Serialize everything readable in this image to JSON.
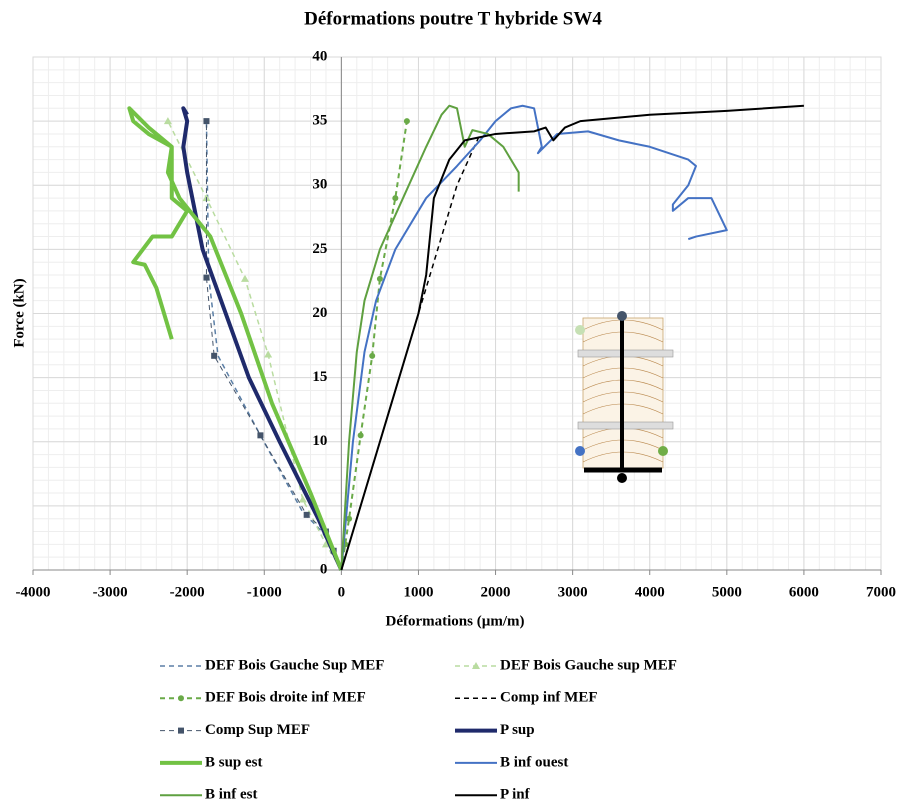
{
  "chart_data": {
    "type": "line",
    "title": "Déformations poutre T hybride SW4",
    "x_label": "Déformations (µm/m)",
    "y_label": "Force (kN)",
    "xlim": [
      -4000,
      7000
    ],
    "xticks": [
      -4000,
      -3000,
      -2000,
      -1000,
      0,
      1000,
      2000,
      3000,
      4000,
      5000,
      6000,
      7000
    ],
    "ylim": [
      0,
      40
    ],
    "yticks": [
      0,
      10,
      15,
      20,
      25,
      30,
      35,
      40
    ],
    "grid": true,
    "minor_grid": true,
    "series": [
      {
        "name": "DEF Bois Gauche Sup MEF",
        "color": "#5b7fa6",
        "dash": true,
        "width": 1.5,
        "marker": "none",
        "x": [
          0,
          -120,
          -250,
          -500,
          -1050,
          -1600,
          -1720,
          -1750
        ],
        "y": [
          0,
          1.5,
          3,
          4.5,
          10.5,
          16.7,
          22.8,
          35
        ]
      },
      {
        "name": "DEF Bois Gauche sup MEF",
        "color": "#b9dca0",
        "dash": true,
        "width": 1.5,
        "marker": "triangle",
        "x": [
          0,
          -200,
          -500,
          -950,
          -1250,
          -1750,
          -2250
        ],
        "y": [
          0,
          2,
          5.5,
          16.8,
          22.7,
          29,
          35
        ]
      },
      {
        "name": "DEF Bois droite inf MEF",
        "color": "#6aaa48",
        "dash": true,
        "width": 2,
        "marker": "circle",
        "x": [
          0,
          50,
          100,
          250,
          400,
          500,
          700,
          850
        ],
        "y": [
          0,
          2,
          4,
          10.5,
          16.7,
          22.7,
          29,
          35
        ]
      },
      {
        "name": "Comp inf MEF",
        "color": "#000000",
        "dash": true,
        "width": 1.5,
        "marker": "none",
        "x": [
          0,
          500,
          1000,
          1500,
          1800
        ],
        "y": [
          0,
          10,
          20,
          30,
          34
        ]
      },
      {
        "name": "Comp Sup MEF",
        "color": "#44546a",
        "dash": true,
        "width": 1,
        "marker": "square",
        "x": [
          0,
          -100,
          -200,
          -450,
          -1050,
          -1650,
          -1750,
          -1750
        ],
        "y": [
          0,
          1.5,
          3,
          4.3,
          10.5,
          16.7,
          22.8,
          35
        ]
      },
      {
        "name": "P sup",
        "color": "#1f2a6b",
        "dash": false,
        "width": 4,
        "marker": "none",
        "x": [
          0,
          -300,
          -800,
          -1200,
          -1500,
          -1800,
          -1900,
          -2000,
          -2050,
          -2000,
          -2050,
          -2000
        ],
        "y": [
          0,
          4,
          10,
          15,
          20,
          25,
          28,
          31,
          33,
          35,
          36,
          35.5
        ]
      },
      {
        "name": "B sup est",
        "color": "#72c244",
        "dash": false,
        "width": 4,
        "marker": "none",
        "x": [
          0,
          -400,
          -900,
          -1300,
          -1700,
          -2100,
          -2250,
          -2200,
          -2500,
          -2700,
          -2750,
          -2500,
          -2200,
          -2200,
          -2000,
          -2200,
          -2450,
          -2700,
          -2550,
          -2400,
          -2200
        ],
        "y": [
          0,
          6,
          13,
          20,
          26,
          29,
          31,
          33,
          34,
          35,
          36,
          34.5,
          33,
          29,
          28,
          26,
          26,
          24,
          23.8,
          22,
          18
        ]
      },
      {
        "name": "B inf ouest",
        "color": "#4472c4",
        "dash": false,
        "width": 2,
        "marker": "none",
        "x": [
          0,
          150,
          300,
          450,
          700,
          1100,
          1500,
          1800,
          2000,
          2200,
          2350,
          2500,
          2600,
          2550,
          2800,
          3200,
          3600,
          4000,
          4500,
          4600,
          4500,
          4300,
          4300,
          4500,
          4800,
          5000,
          4600,
          4500
        ],
        "y": [
          0,
          10,
          17,
          21,
          25,
          29,
          31.5,
          33.5,
          35,
          36,
          36.2,
          36,
          33,
          32.5,
          34,
          34.2,
          33.5,
          33,
          32,
          31.5,
          30,
          28.5,
          28,
          29,
          29,
          26.5,
          26,
          25.8
        ]
      },
      {
        "name": "B inf est",
        "color": "#5fa040",
        "dash": false,
        "width": 2,
        "marker": "none",
        "x": [
          0,
          100,
          200,
          300,
          500,
          800,
          1100,
          1300,
          1400,
          1500,
          1600,
          1700,
          1900,
          2100,
          2300,
          2300,
          2300
        ],
        "y": [
          0,
          10,
          17,
          21,
          25,
          29,
          33,
          35.5,
          36.2,
          36,
          33,
          34.3,
          34,
          33,
          31,
          30.5,
          29.5
        ]
      },
      {
        "name": "P inf",
        "color": "#000000",
        "dash": false,
        "width": 2,
        "marker": "none",
        "x": [
          0,
          500,
          1000,
          1100,
          1200,
          1400,
          1600,
          2000,
          2500,
          2650,
          2750,
          2900,
          3100,
          4000,
          5000,
          6000
        ],
        "y": [
          0,
          10,
          20,
          23,
          29,
          32,
          33.5,
          34,
          34.2,
          34.5,
          33.5,
          34.5,
          35,
          35.5,
          35.8,
          36.2
        ]
      }
    ]
  }
}
